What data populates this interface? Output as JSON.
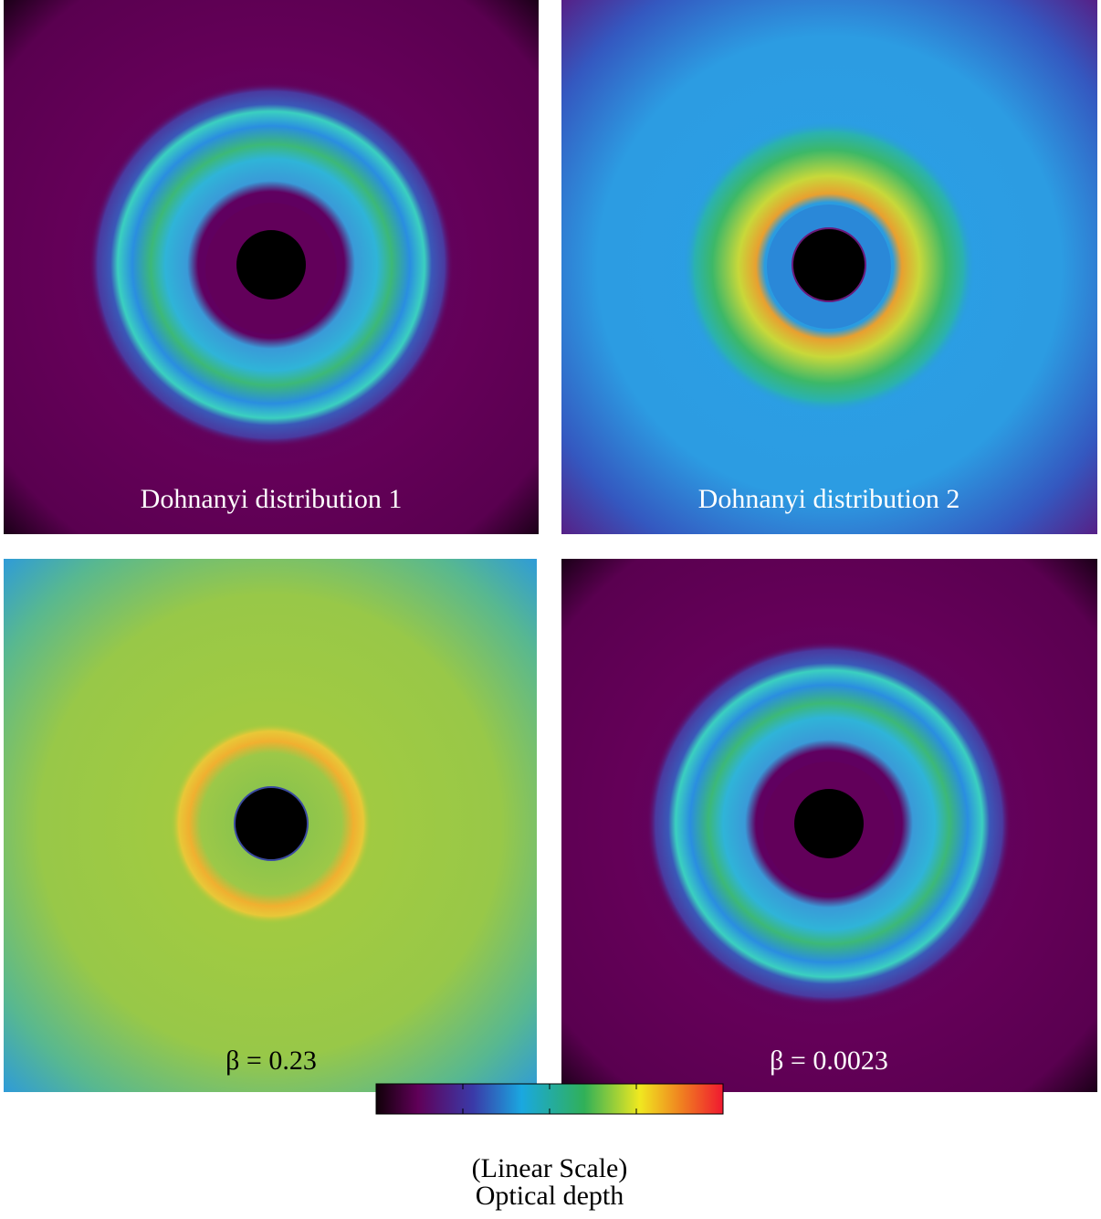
{
  "panels": [
    {
      "label": "Dohnanyi distribution 1"
    },
    {
      "label": "Dohnanyi distribution 2"
    },
    {
      "label": "β = 0.23"
    },
    {
      "label": "β = 0.0023"
    }
  ],
  "colorbar": {
    "scale_label": "(Linear Scale)",
    "title": "Optical depth"
  }
}
